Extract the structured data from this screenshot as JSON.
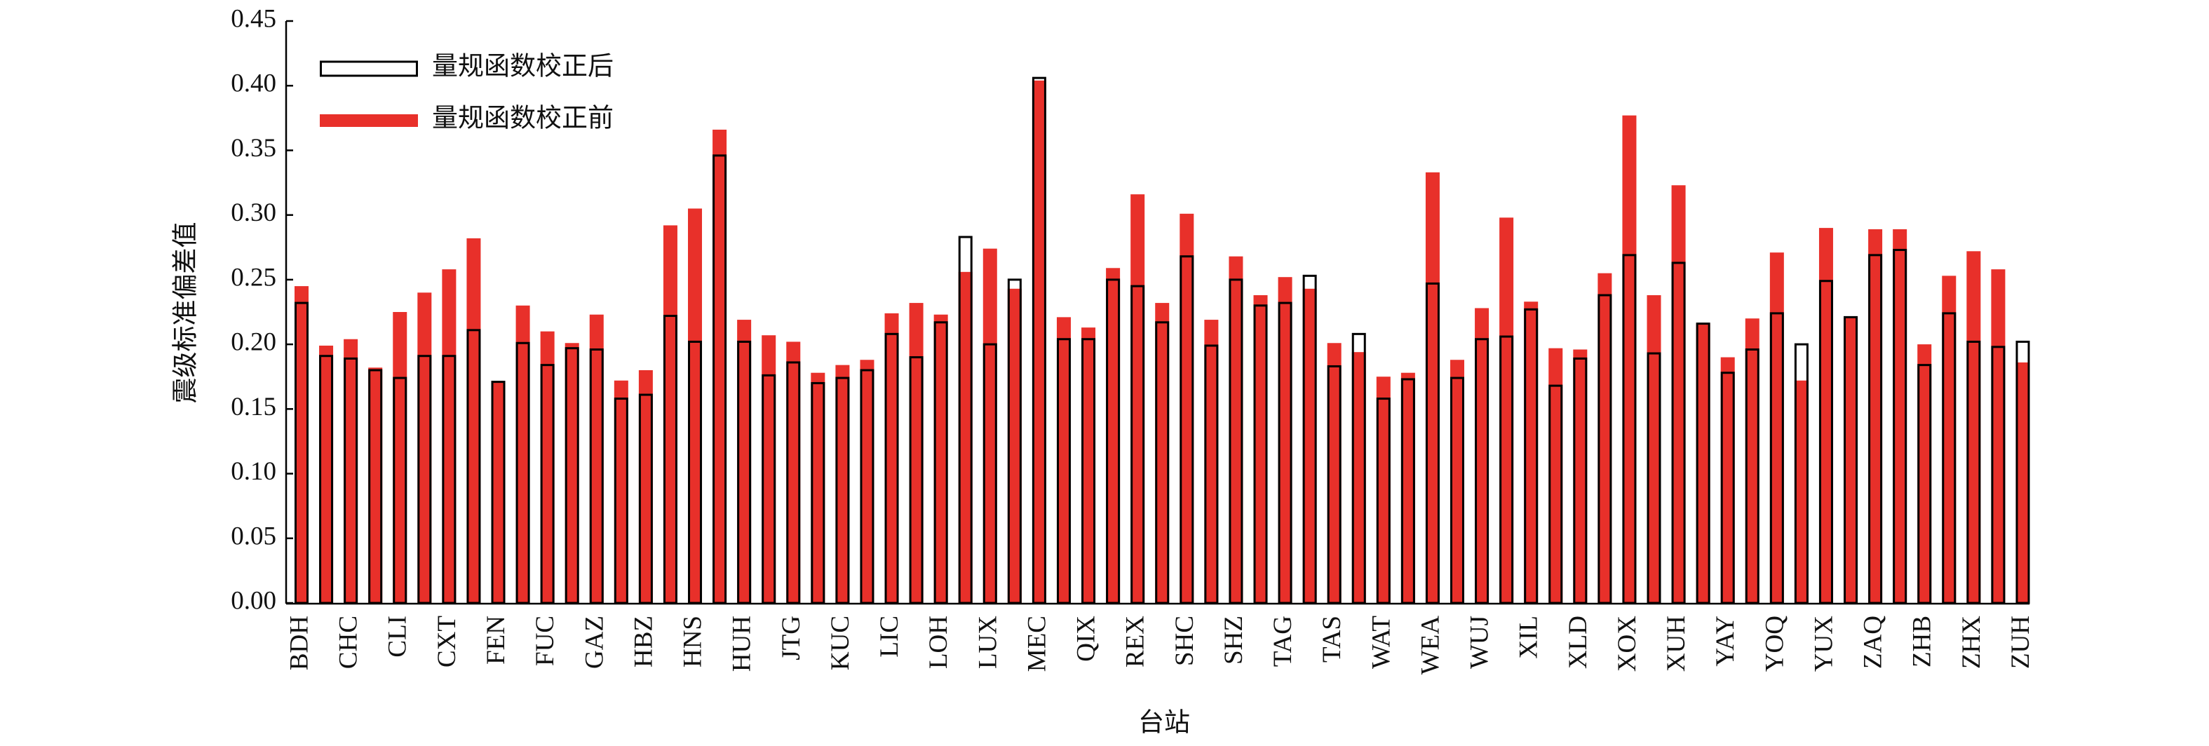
{
  "chart_data": {
    "type": "bar",
    "x_label": "台站",
    "y_label": "震级标准偏差值",
    "categories": [
      "BDH",
      null,
      "CHC",
      null,
      "CLI",
      null,
      "CXT",
      null,
      "FEN",
      null,
      "FUC",
      null,
      "GAZ",
      null,
      "HBZ",
      null,
      "HNS",
      null,
      "HUH",
      null,
      "JTG",
      null,
      "KUC",
      null,
      "LIC",
      null,
      "LOH",
      null,
      "LUX",
      null,
      "MEC",
      null,
      "QIX",
      null,
      "REX",
      null,
      "SHC",
      null,
      "SHZ",
      null,
      "TAG",
      null,
      "TAS",
      null,
      "WAT",
      null,
      "WEA",
      null,
      "WUJ",
      null,
      "XIL",
      null,
      "XLD",
      null,
      "XOX",
      null,
      "XUH",
      null,
      "YAY",
      null,
      "YOQ",
      null,
      "YUX",
      null,
      "ZAQ",
      null,
      "ZHB",
      null,
      "ZHX",
      null,
      "ZUH"
    ],
    "series": [
      {
        "name": "量规函数校正后",
        "color": "#000000",
        "fill": false,
        "values": [
          0.232,
          0.191,
          0.189,
          0.18,
          0.174,
          0.191,
          0.191,
          0.211,
          0.171,
          0.201,
          0.184,
          0.197,
          0.196,
          0.158,
          0.161,
          0.222,
          0.202,
          0.346,
          0.202,
          0.176,
          0.186,
          0.17,
          0.174,
          0.18,
          0.208,
          0.19,
          0.217,
          0.283,
          0.2,
          0.25,
          0.406,
          0.204,
          0.204,
          0.25,
          0.245,
          0.217,
          0.268,
          0.199,
          0.25,
          0.23,
          0.232,
          0.253,
          0.183,
          0.208,
          0.158,
          0.173,
          0.247,
          0.174,
          0.204,
          0.206,
          0.227,
          0.168,
          0.189,
          0.238,
          0.269,
          0.193,
          0.263,
          0.216,
          0.178,
          0.196,
          0.224,
          0.2,
          0.249,
          0.221,
          0.269,
          0.273,
          0.184,
          0.224,
          0.202,
          0.198,
          0.202
        ]
      },
      {
        "name": "量规函数校正前",
        "color": "#e8302a",
        "fill": true,
        "values": [
          0.245,
          0.199,
          0.204,
          0.182,
          0.225,
          0.24,
          0.258,
          0.282,
          0.171,
          0.23,
          0.21,
          0.201,
          0.223,
          0.172,
          0.18,
          0.292,
          0.305,
          0.366,
          0.219,
          0.207,
          0.202,
          0.178,
          0.184,
          0.188,
          0.224,
          0.232,
          0.223,
          0.256,
          0.274,
          0.243,
          0.404,
          0.221,
          0.213,
          0.259,
          0.316,
          0.232,
          0.301,
          0.219,
          0.268,
          0.238,
          0.252,
          0.243,
          0.201,
          0.194,
          0.175,
          0.178,
          0.333,
          0.188,
          0.228,
          0.298,
          0.233,
          0.197,
          0.196,
          0.255,
          0.377,
          0.238,
          0.323,
          0.216,
          0.19,
          0.22,
          0.271,
          0.172,
          0.29,
          0.221,
          0.289,
          0.289,
          0.2,
          0.253,
          0.272,
          0.258,
          0.186
        ]
      }
    ],
    "ylim": [
      0,
      0.45
    ],
    "yticks": [
      {
        "value": 0,
        "label": "0.00"
      },
      {
        "value": 0.05,
        "label": "0.05"
      },
      {
        "value": 0.1,
        "label": "0.10"
      },
      {
        "value": 0.15,
        "label": "0.15"
      },
      {
        "value": 0.2,
        "label": "0.20"
      },
      {
        "value": 0.25,
        "label": "0.25"
      },
      {
        "value": 0.3,
        "label": "0.30"
      },
      {
        "value": 0.35,
        "label": "0.35"
      },
      {
        "value": 0.4,
        "label": "0.40"
      },
      {
        "value": 0.45,
        "label": "0.45"
      }
    ],
    "legend": "upper left",
    "grid": false
  }
}
